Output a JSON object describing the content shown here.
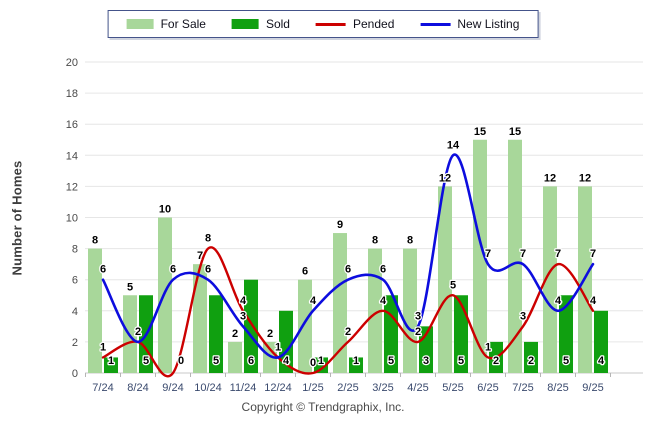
{
  "legend": {
    "for_sale": "For Sale",
    "sold": "Sold",
    "pended": "Pended",
    "new_listing": "New Listing"
  },
  "y_axis_title": "Number of Homes",
  "footer": "Copyright © Trendgraphix, Inc.",
  "colors": {
    "for_sale": "#A8D79A",
    "sold": "#10A010",
    "pended": "#CC0000",
    "new_listing": "#0D0DDE",
    "grid": "#E6E6E6",
    "axis": "#C8C8C8",
    "tick": "#B5B5B5",
    "y_tick_label": "#4A4A4A",
    "x_tick_label": "#3A4A6E",
    "data_label": "#000000"
  },
  "chart_data": {
    "type": "bar",
    "subtype": "grouped-bars-with-smoothed-lines",
    "title": "",
    "xlabel": "",
    "ylabel": "Number of Homes",
    "ylim": [
      0,
      20
    ],
    "ytick_step": 2,
    "grid": true,
    "legend_position": "top-center",
    "categories": [
      "7/24",
      "8/24",
      "9/24",
      "10/24",
      "11/24",
      "12/24",
      "1/25",
      "2/25",
      "3/25",
      "4/25",
      "5/25",
      "6/25",
      "7/25",
      "8/25",
      "9/25"
    ],
    "series": [
      {
        "name": "For Sale",
        "render": "bar",
        "color_key": "for_sale",
        "values": [
          8,
          5,
          10,
          7,
          2,
          2,
          6,
          9,
          8,
          8,
          12,
          15,
          15,
          12,
          12
        ]
      },
      {
        "name": "Sold",
        "render": "bar",
        "color_key": "sold",
        "values": [
          1,
          5,
          0,
          5,
          6,
          4,
          1,
          1,
          5,
          3,
          5,
          2,
          2,
          5,
          4
        ]
      },
      {
        "name": "Pended",
        "render": "line",
        "color_key": "pended",
        "values": [
          1,
          2,
          0,
          8,
          4,
          1,
          0,
          2,
          4,
          2,
          5,
          1,
          3,
          7,
          4
        ]
      },
      {
        "name": "New Listing",
        "render": "line",
        "color_key": "new_listing",
        "values": [
          6,
          2,
          6,
          6,
          3,
          1,
          4,
          6,
          6,
          3,
          14,
          7,
          7,
          4,
          7
        ]
      }
    ]
  }
}
